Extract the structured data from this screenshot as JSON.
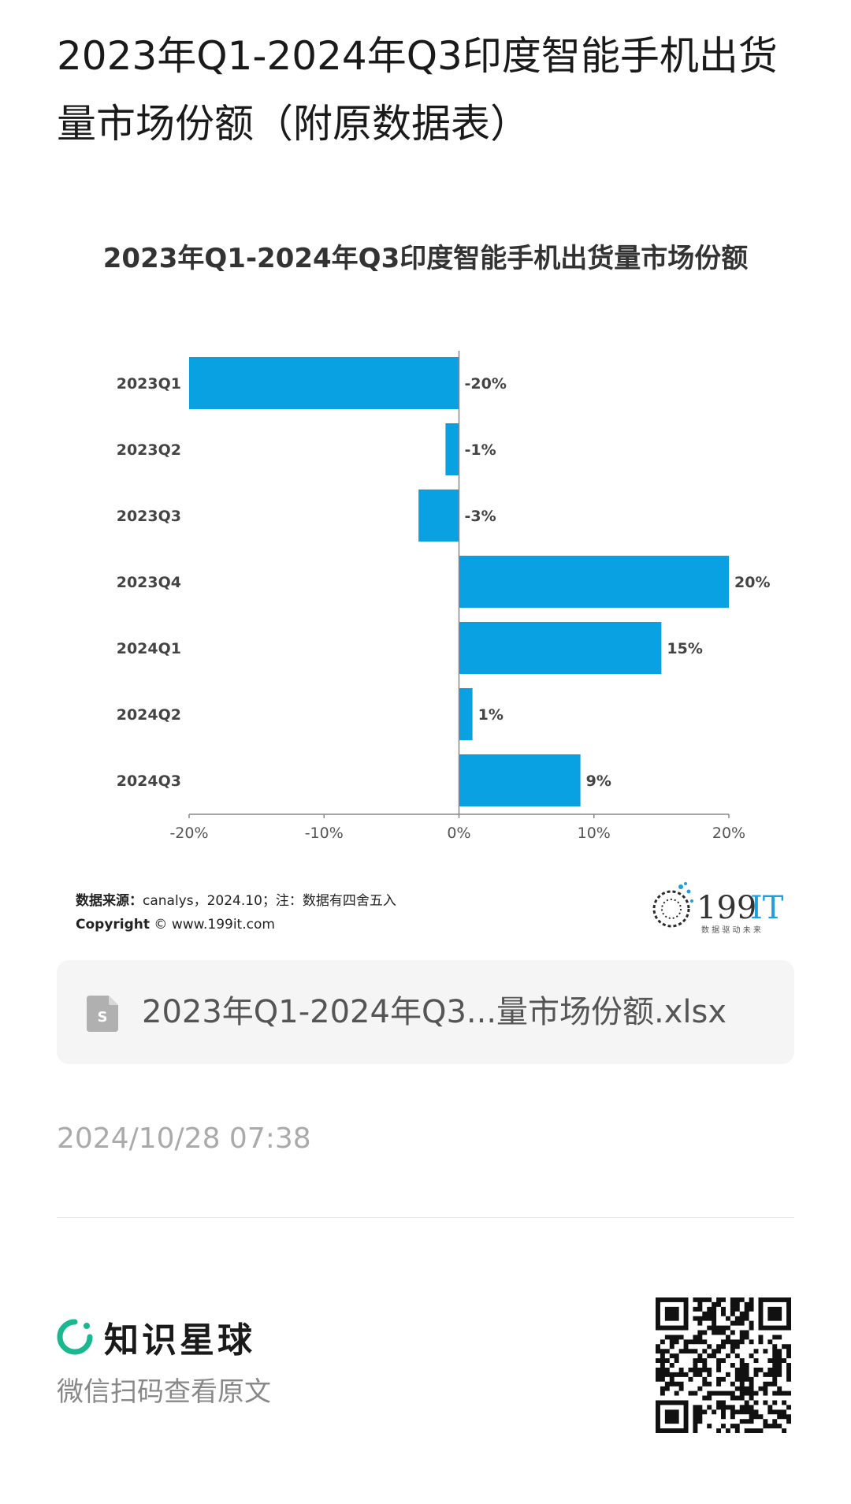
{
  "article": {
    "title": "2023年Q1-2024年Q3印度智能手机出货量市场份额（附原数据表）",
    "timestamp": "2024/10/28 07:38"
  },
  "chart_data": {
    "type": "bar",
    "orientation": "horizontal",
    "title": "2023年Q1-2024年Q3印度智能手机出货量市场份额",
    "categories": [
      "2023Q1",
      "2023Q2",
      "2023Q3",
      "2023Q4",
      "2024Q1",
      "2024Q2",
      "2024Q3"
    ],
    "values": [
      -20,
      -1,
      -3,
      20,
      15,
      1,
      9
    ],
    "data_labels": [
      "-20%",
      "-1%",
      "-3%",
      "20%",
      "15%",
      "1%",
      "9%"
    ],
    "xlim": [
      -20,
      20
    ],
    "x_ticks": [
      -20,
      -10,
      0,
      10,
      20
    ],
    "x_tick_labels": [
      "-20%",
      "-10%",
      "0%",
      "10%",
      "20%"
    ],
    "bar_color": "#0aa1e2",
    "grid": false,
    "legend": "none"
  },
  "source": {
    "label": "数据来源：",
    "text": "canalys，2024.10；注：数据有四舍五入",
    "copyright_label": "Copyright",
    "copyright_text": "© www.199it.com"
  },
  "brand": {
    "name_num": "199",
    "name_it": "IT",
    "tagline": "数 据 驱 动 未 来",
    "accent": "#1fa0dc"
  },
  "file_card": {
    "icon": "spreadsheet-file-icon",
    "filename": "2023年Q1-2024年Q3...量市场份额.xlsx"
  },
  "footer": {
    "app_name": "知识星球",
    "subtitle": "微信扫码查看原文",
    "app_icon": "zsxq-logo-icon",
    "accent": "#19b891"
  }
}
